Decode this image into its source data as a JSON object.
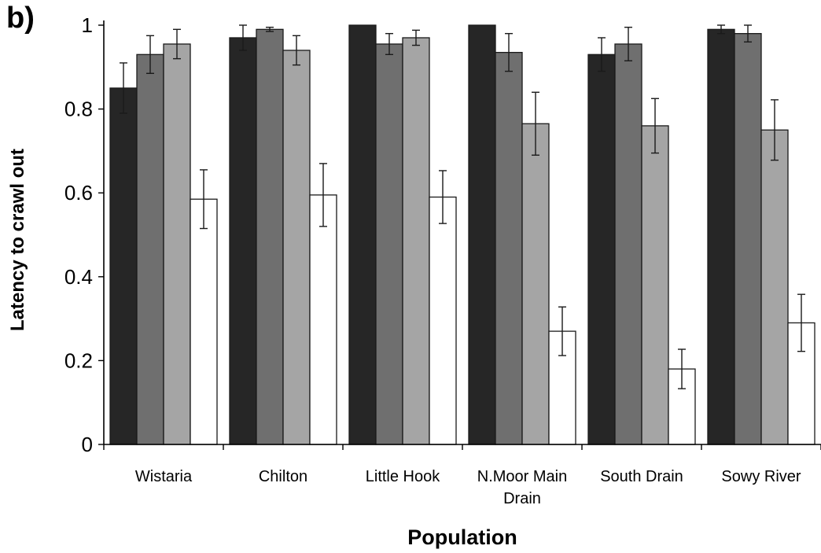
{
  "panel_label": "b)",
  "chart_data": {
    "type": "bar",
    "title": "",
    "xlabel": "Population",
    "ylabel": "Latency to crawl out",
    "ylim": [
      0,
      1
    ],
    "yticks": [
      0,
      0.2,
      0.4,
      0.6,
      0.8,
      1
    ],
    "ytick_labels": [
      "0",
      "0.2",
      "0.4",
      "0.6",
      "0.8",
      "1"
    ],
    "grid": false,
    "legend": "none",
    "categories": [
      [
        "Wistaria"
      ],
      [
        "Chilton"
      ],
      [
        "Little Hook"
      ],
      [
        "N.Moor Main",
        "Drain"
      ],
      [
        "South Drain"
      ],
      [
        "Sowy River"
      ]
    ],
    "series": [
      {
        "color": "#262626",
        "values": [
          0.85,
          0.97,
          1.0,
          1.0,
          0.93,
          0.99
        ],
        "errors": [
          0.06,
          0.03,
          0.0,
          0.0,
          0.04,
          0.01
        ]
      },
      {
        "color": "#6f6f6f",
        "values": [
          0.93,
          0.99,
          0.955,
          0.935,
          0.955,
          0.98
        ],
        "errors": [
          0.045,
          0.005,
          0.025,
          0.045,
          0.04,
          0.02
        ]
      },
      {
        "color": "#a5a5a5",
        "values": [
          0.955,
          0.94,
          0.97,
          0.765,
          0.76,
          0.75
        ],
        "errors": [
          0.035,
          0.035,
          0.018,
          0.075,
          0.065,
          0.072
        ]
      },
      {
        "color": "#ffffff",
        "values": [
          0.585,
          0.595,
          0.59,
          0.27,
          0.18,
          0.29
        ],
        "errors": [
          0.07,
          0.075,
          0.063,
          0.058,
          0.047,
          0.068
        ]
      }
    ]
  }
}
